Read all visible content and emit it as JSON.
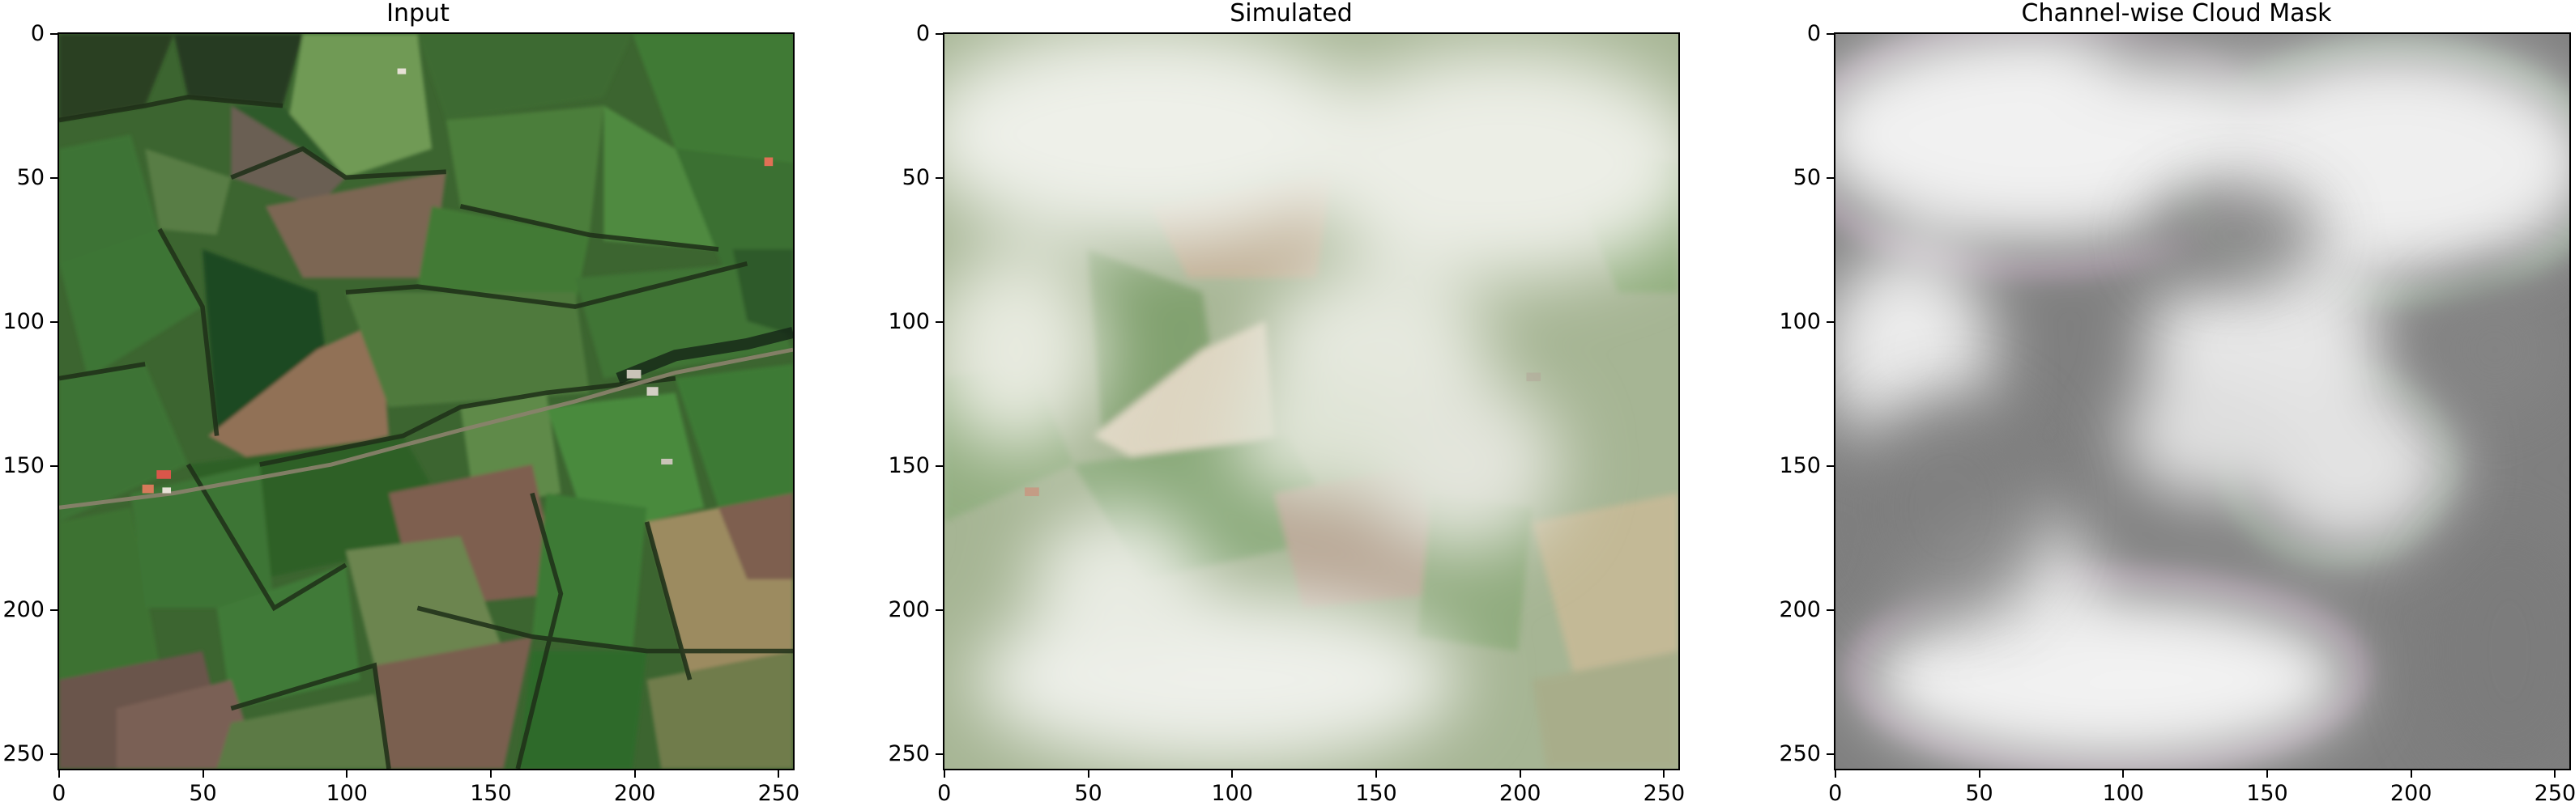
{
  "panels": [
    {
      "id": "input",
      "title": "Input",
      "description": "Aerial view of green and brown agricultural fields with hedgerows, a road and farm buildings",
      "palette": {
        "base": "#3f6a2e",
        "dark": "#1f3a1b",
        "brown": "#7d6350",
        "light": "#7fae5f",
        "road": "#9a8f7a",
        "building": "#d35a4a"
      }
    },
    {
      "id": "simulated",
      "title": "Simulated",
      "description": "The same fields partially covered by a simulated white cloud layer",
      "palette": {
        "base": "#a8b595",
        "cloud": "#eceee6",
        "green": "#8bab78",
        "brown": "#c2ad93"
      }
    },
    {
      "id": "mask",
      "title": "Channel-wise Cloud Mask",
      "description": "Grayscale cloud mask, light where clouds are dense and gray where clear, with faint green and magenta fringes",
      "palette": {
        "clear": "#7f7f7f",
        "cloud": "#f1f1f1",
        "fringe_green": "#9fd7a0",
        "fringe_magenta": "#c79ac2"
      }
    }
  ],
  "axes": {
    "x_ticks": [
      "0",
      "50",
      "100",
      "150",
      "200",
      "250"
    ],
    "y_ticks": [
      "0",
      "50",
      "100",
      "150",
      "200",
      "250"
    ],
    "xlim": [
      -0.5,
      255.5
    ],
    "ylim": [
      255.5,
      -0.5
    ]
  }
}
